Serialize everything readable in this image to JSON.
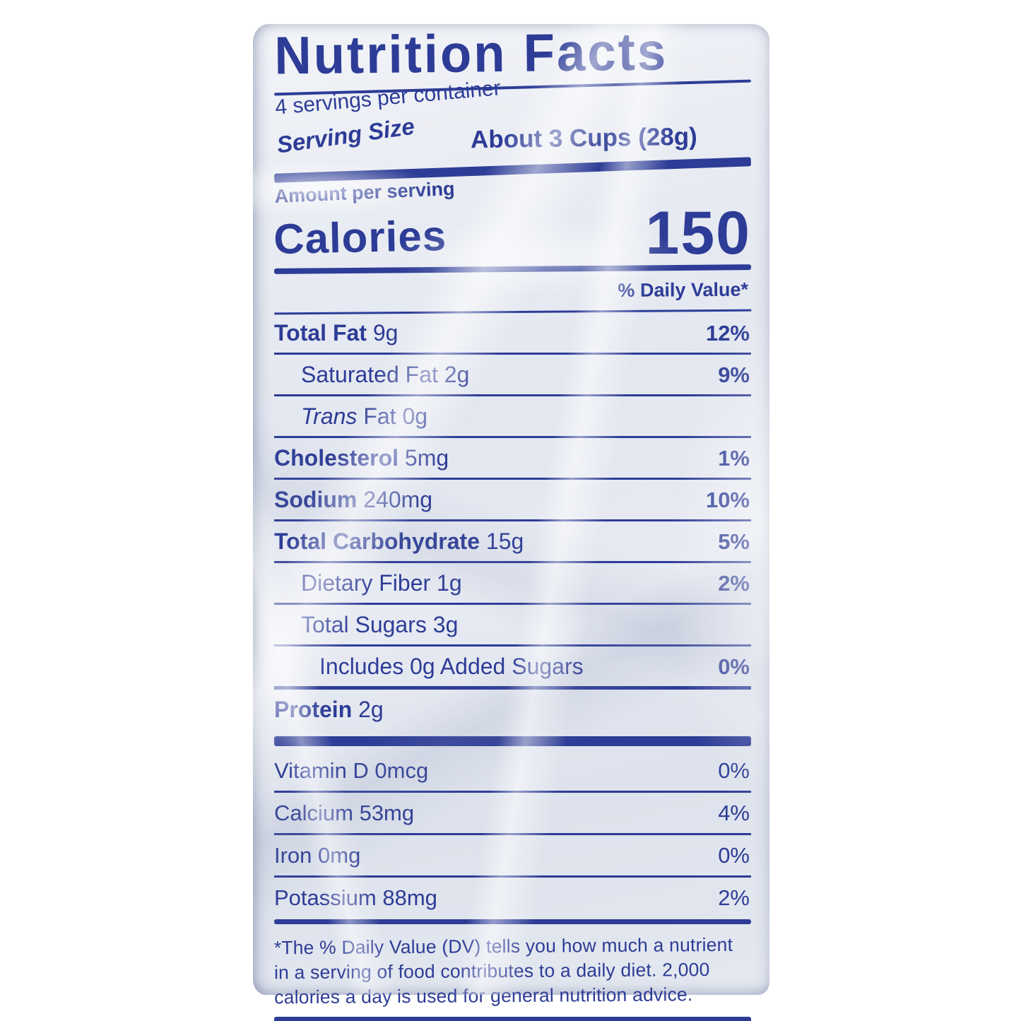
{
  "colors": {
    "ink": "#2d3c96",
    "package_bg": "#e7eaf2",
    "photo_bg": "#ffffff"
  },
  "label": {
    "title": "Nutrition Facts",
    "servings_per_container": "4 servings per container",
    "serving_size_label": "Serving Size",
    "serving_size_value": "About 3 Cups (28g)",
    "amount_per_serving": "Amount per serving",
    "calories_label": "Calories",
    "calories_value": "150",
    "daily_value_header": "% Daily Value*",
    "rows": [
      {
        "parts": [
          {
            "text": "Total Fat",
            "bold": true
          },
          {
            "text": " 9g"
          }
        ],
        "dv": "12%",
        "dv_bold": true,
        "indent": 0
      },
      {
        "parts": [
          {
            "text": "Saturated Fat 2g"
          }
        ],
        "dv": "9%",
        "dv_bold": true,
        "indent": 1
      },
      {
        "parts": [
          {
            "text": "Trans",
            "italic": true
          },
          {
            "text": " Fat 0g"
          }
        ],
        "dv": "",
        "dv_bold": false,
        "indent": 1
      },
      {
        "parts": [
          {
            "text": "Cholesterol",
            "bold": true
          },
          {
            "text": " 5mg"
          }
        ],
        "dv": "1%",
        "dv_bold": true,
        "indent": 0
      },
      {
        "parts": [
          {
            "text": "Sodium",
            "bold": true
          },
          {
            "text": " 240mg"
          }
        ],
        "dv": "10%",
        "dv_bold": true,
        "indent": 0
      },
      {
        "parts": [
          {
            "text": "Total Carbohydrate",
            "bold": true
          },
          {
            "text": " 15g"
          }
        ],
        "dv": "5%",
        "dv_bold": true,
        "indent": 0
      },
      {
        "parts": [
          {
            "text": "Dietary Fiber 1g"
          }
        ],
        "dv": "2%",
        "dv_bold": true,
        "indent": 1
      },
      {
        "parts": [
          {
            "text": "Total Sugars 3g"
          }
        ],
        "dv": "",
        "dv_bold": false,
        "indent": 1
      },
      {
        "parts": [
          {
            "text": "Includes 0g Added Sugars"
          }
        ],
        "dv": "0%",
        "dv_bold": true,
        "indent": 2
      },
      {
        "parts": [
          {
            "text": "Protein",
            "bold": true
          },
          {
            "text": " 2g"
          }
        ],
        "dv": "",
        "dv_bold": false,
        "indent": 0,
        "sep_medium": true
      }
    ],
    "vitamins": [
      {
        "parts": [
          {
            "text": "Vitamin D 0mcg"
          }
        ],
        "dv": "0%"
      },
      {
        "parts": [
          {
            "text": "Calcium 53mg"
          }
        ],
        "dv": "4%"
      },
      {
        "parts": [
          {
            "text": "Iron",
            "italic": true
          },
          {
            "text": " 0mg"
          }
        ],
        "dv": "0%"
      },
      {
        "parts": [
          {
            "text": "Potass",
            "italic": false
          },
          {
            "text": "ium 88mg"
          }
        ],
        "dv": "2%"
      }
    ],
    "footnote": "*The % Daily Value (DV) tells you how much a nutrient in a serving of food contributes to a daily diet. 2,000 calories a day is used for general nutrition advice."
  }
}
